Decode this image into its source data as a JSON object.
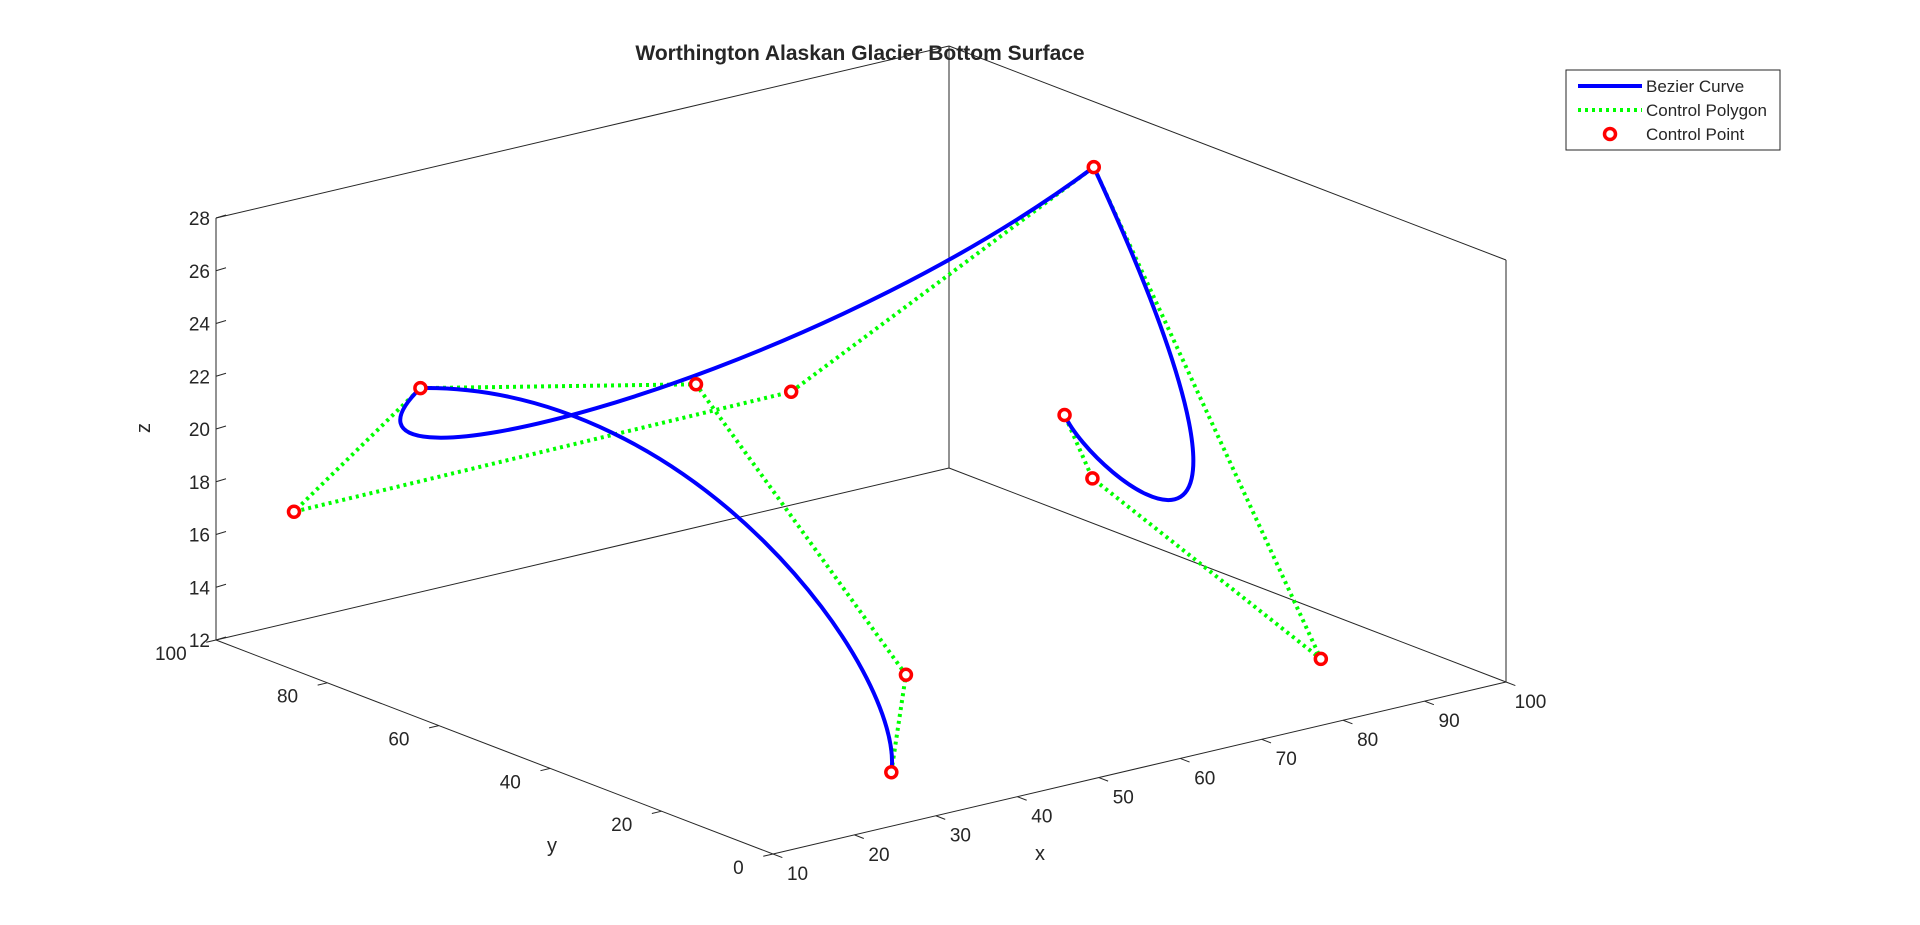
{
  "chart_data": {
    "type": "line",
    "projection": "3d",
    "title": "Worthington Alaskan Glacier Bottom Surface",
    "xlabel": "x",
    "ylabel": "y",
    "zlabel": "z",
    "xlim": [
      10,
      100
    ],
    "ylim": [
      0,
      100
    ],
    "zlim": [
      12,
      28
    ],
    "xticks": [
      "10",
      "20",
      "30",
      "40",
      "50",
      "60",
      "70",
      "80",
      "90",
      "100"
    ],
    "yticks": [
      "0",
      "20",
      "40",
      "60",
      "80",
      "100"
    ],
    "zticks": [
      "12",
      "14",
      "16",
      "18",
      "20",
      "22",
      "24",
      "26",
      "28"
    ],
    "grid": false,
    "box": true,
    "legend_position": "top-right",
    "legend": [
      "Bezier Curve",
      "Control Polygon",
      "Control Point"
    ],
    "colors": {
      "curve": "#0000ff",
      "polygon": "#00ff00",
      "point": "#ff0000",
      "axes": "#262626"
    },
    "series": [
      {
        "name": "Bezier Curve",
        "type": "bezier-curve",
        "segments": [
          [
            0,
            1,
            2,
            3
          ],
          [
            3,
            4,
            5,
            6
          ],
          [
            6,
            7,
            8,
            9
          ]
        ]
      },
      {
        "name": "Control Polygon",
        "type": "polyline"
      },
      {
        "name": "Control Point",
        "type": "markers",
        "points": [
          {
            "x": 30,
            "y": 8,
            "z": 13
          },
          {
            "x": 40,
            "y": 20,
            "z": 15
          },
          {
            "x": 45,
            "y": 65,
            "z": 22
          },
          {
            "x": 18,
            "y": 75,
            "z": 23
          },
          {
            "x": 10,
            "y": 86,
            "z": 18
          },
          {
            "x": 56,
            "y": 64,
            "z": 21
          },
          {
            "x": 87,
            "y": 55,
            "z": 28
          },
          {
            "x": 80,
            "y": 4,
            "z": 14
          },
          {
            "x": 67,
            "y": 26,
            "z": 20
          },
          {
            "x": 67,
            "y": 31,
            "z": 22
          }
        ]
      }
    ]
  }
}
